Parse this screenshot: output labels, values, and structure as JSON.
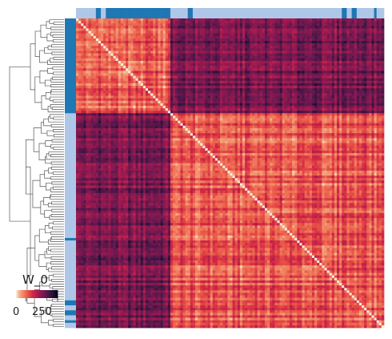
{
  "chart_data": {
    "type": "heatmap",
    "title": "",
    "xlabel": "",
    "ylabel": "",
    "n": 124,
    "split_index": 38,
    "cluster_colors": {
      "A": "#1f77b4",
      "B": "#aec7e8"
    },
    "cluster_A_rows": [
      0,
      1,
      2,
      3,
      4,
      5,
      6,
      7,
      8,
      9,
      10,
      11,
      12,
      13,
      14,
      15,
      16,
      17,
      18,
      19,
      20,
      21,
      22,
      23,
      24,
      25,
      26,
      27,
      28,
      29,
      30,
      31,
      32,
      33,
      34,
      35,
      36,
      37
    ],
    "top_strip_A_cols": [
      8,
      9,
      12,
      13,
      14,
      15,
      16,
      17,
      18,
      19,
      20,
      21,
      22,
      23,
      24,
      25,
      26,
      27,
      28,
      29,
      30,
      31,
      32,
      33,
      34,
      35,
      36,
      37,
      45,
      46,
      107,
      108,
      111,
      112,
      120
    ],
    "left_strip_A_extra_rows": [
      3,
      6,
      12,
      13,
      88,
      113,
      114,
      117,
      118,
      121
    ],
    "colormap": "rocket",
    "colorbar": {
      "label": "W_0",
      "min": 0,
      "max": 330,
      "ticks": [
        "0",
        "250"
      ],
      "placement": "bottom-left"
    },
    "block_means": {
      "A_A": 240,
      "B_B": 235,
      "A_B": 110
    },
    "diagonal_value": 330
  }
}
